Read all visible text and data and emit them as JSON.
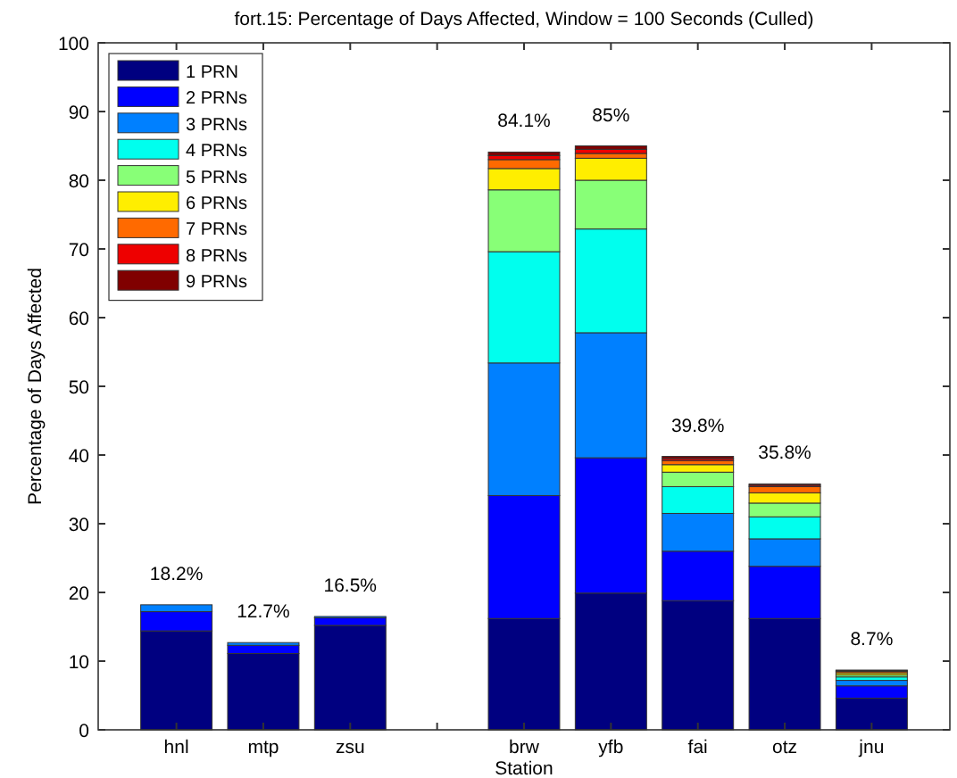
{
  "chart_data": {
    "type": "bar",
    "stacked": true,
    "title": "fort.15: Percentage of Days Affected, Window = 100 Seconds (Culled)",
    "xlabel": "Station",
    "ylabel": "Percentage of Days Affected",
    "categories": [
      "hnl",
      "mtp",
      "zsu",
      null,
      "brw",
      "yfb",
      "fai",
      "otz",
      "jnu"
    ],
    "series": [
      {
        "name": "1 PRN",
        "color": "#000080",
        "values": [
          14.4,
          11.1,
          15.2,
          null,
          16.2,
          19.9,
          18.8,
          16.2,
          4.6
        ]
      },
      {
        "name": "2 PRNs",
        "color": "#0000ff",
        "values": [
          2.8,
          1.2,
          1.1,
          null,
          17.9,
          19.7,
          7.2,
          7.6,
          1.8
        ]
      },
      {
        "name": "3 PRNs",
        "color": "#0080ff",
        "values": [
          1.0,
          0.4,
          0.2,
          null,
          19.3,
          18.2,
          5.5,
          4.0,
          0.8
        ]
      },
      {
        "name": "4 PRNs",
        "color": "#00ffee",
        "values": [
          0,
          0,
          0,
          null,
          16.2,
          15.1,
          3.9,
          3.2,
          0.5
        ]
      },
      {
        "name": "5 PRNs",
        "color": "#88ff77",
        "values": [
          0,
          0,
          0,
          null,
          9.0,
          7.1,
          2.1,
          2.0,
          0.3
        ]
      },
      {
        "name": "6 PRNs",
        "color": "#ffee00",
        "values": [
          0,
          0,
          0,
          null,
          3.1,
          3.2,
          1.1,
          1.5,
          0.3
        ]
      },
      {
        "name": "7 PRNs",
        "color": "#ff6a00",
        "values": [
          0,
          0,
          0,
          null,
          1.3,
          0.7,
          0.6,
          0.9,
          0.2
        ]
      },
      {
        "name": "8 PRNs",
        "color": "#ee0000",
        "values": [
          0,
          0,
          0,
          null,
          0.6,
          0.6,
          0.3,
          0.2,
          0.1
        ]
      },
      {
        "name": "9 PRNs",
        "color": "#800000",
        "values": [
          0,
          0,
          0,
          null,
          0.5,
          0.5,
          0.3,
          0.2,
          0.1
        ]
      }
    ],
    "totals": [
      "18.2%",
      "12.7%",
      "16.5%",
      null,
      "84.1%",
      "85%",
      "39.8%",
      "35.8%",
      "8.7%"
    ],
    "ylim": [
      0,
      100
    ],
    "yticks": [
      0,
      10,
      20,
      30,
      40,
      50,
      60,
      70,
      80,
      90,
      100
    ],
    "grid": false,
    "legend": "top left"
  }
}
